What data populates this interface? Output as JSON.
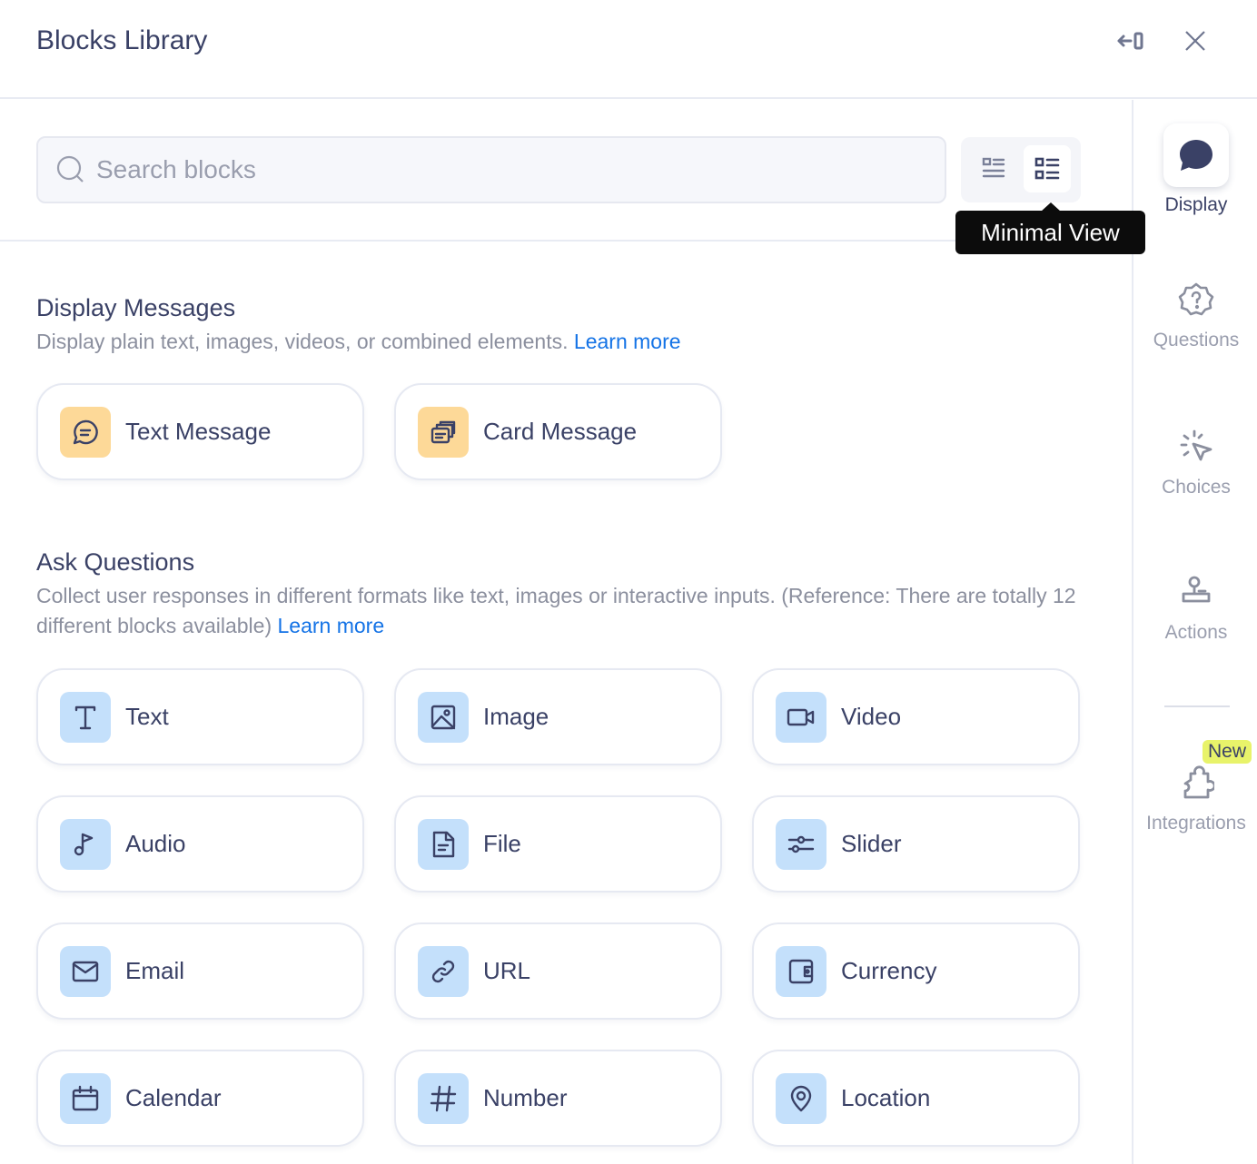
{
  "header": {
    "title": "Blocks Library",
    "collapse_icon": "collapse-panel-icon",
    "close_icon": "close-icon"
  },
  "search": {
    "placeholder": "Search blocks",
    "value": ""
  },
  "view_toggle": {
    "tooltip": "Minimal View",
    "active": "minimal"
  },
  "sections": [
    {
      "title": "Display Messages",
      "description": "Display plain text, images, videos, or combined elements.",
      "link": "Learn more",
      "color": "#fdd998",
      "blocks": [
        {
          "label": "Text Message",
          "icon": "chat-lines"
        },
        {
          "label": "Card Message",
          "icon": "cards"
        }
      ]
    },
    {
      "title": "Ask Questions",
      "description": "Collect user responses in different formats like text, images or interactive inputs. (Reference: There are totally 12 different blocks available)",
      "link": "Learn more",
      "color": "#c4e0fb",
      "blocks": [
        {
          "label": "Text",
          "icon": "text-t"
        },
        {
          "label": "Image",
          "icon": "image"
        },
        {
          "label": "Video",
          "icon": "video"
        },
        {
          "label": "Audio",
          "icon": "music"
        },
        {
          "label": "File",
          "icon": "file"
        },
        {
          "label": "Slider",
          "icon": "slider"
        },
        {
          "label": "Email",
          "icon": "mail"
        },
        {
          "label": "URL",
          "icon": "link"
        },
        {
          "label": "Currency",
          "icon": "wallet"
        },
        {
          "label": "Calendar",
          "icon": "calendar"
        },
        {
          "label": "Number",
          "icon": "hash"
        },
        {
          "label": "Location",
          "icon": "pin"
        }
      ]
    }
  ],
  "rail": {
    "items": [
      {
        "label": "Display",
        "icon": "chat-bubble",
        "active": true
      },
      {
        "label": "Questions",
        "icon": "question-badge"
      },
      {
        "label": "Choices",
        "icon": "click-cursor"
      },
      {
        "label": "Actions",
        "icon": "stamp"
      },
      {
        "label": "Integrations",
        "icon": "puzzle",
        "badge": "New"
      }
    ]
  },
  "colors": {
    "text": "#3a4166",
    "muted": "#8b8f9e",
    "link": "#1473e6",
    "badge": "#e8f36a"
  }
}
